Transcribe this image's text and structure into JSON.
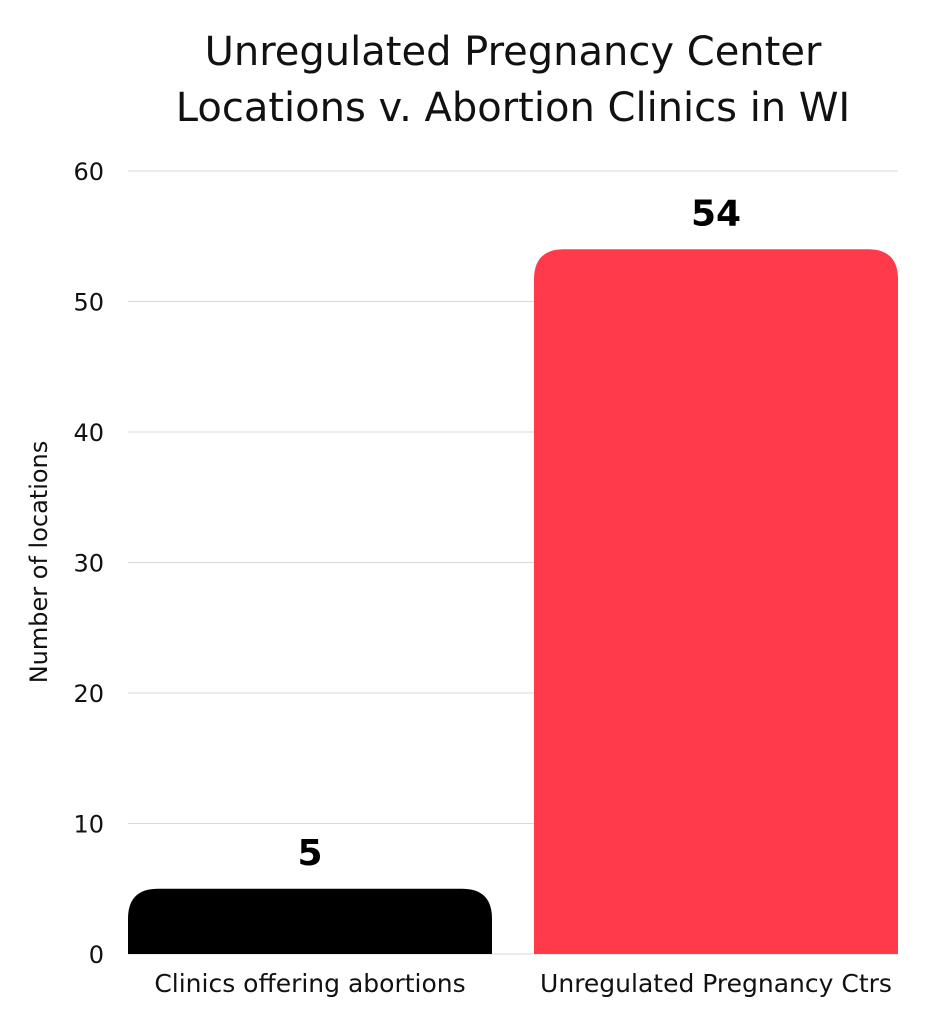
{
  "chart_data": {
    "type": "bar",
    "title_lines": [
      "Unregulated Pregnancy Center",
      "Locations v. Abortion Clinics in WI"
    ],
    "xlabel": "",
    "ylabel": "Number of locations",
    "categories": [
      "Clinics offering abortions",
      "Unregulated Pregnancy Ctrs"
    ],
    "values": [
      5,
      54
    ],
    "value_labels": [
      "5",
      "54"
    ],
    "bar_colors": [
      "#000000",
      "#ff3b4b"
    ],
    "ylim": [
      0,
      60
    ],
    "yticks": [
      0,
      10,
      20,
      30,
      40,
      50,
      60
    ],
    "ytick_labels": [
      "0",
      "10",
      "20",
      "30",
      "40",
      "50",
      "60"
    ],
    "grid": true,
    "grid_color": "#d9d9d9",
    "legend": "none"
  }
}
